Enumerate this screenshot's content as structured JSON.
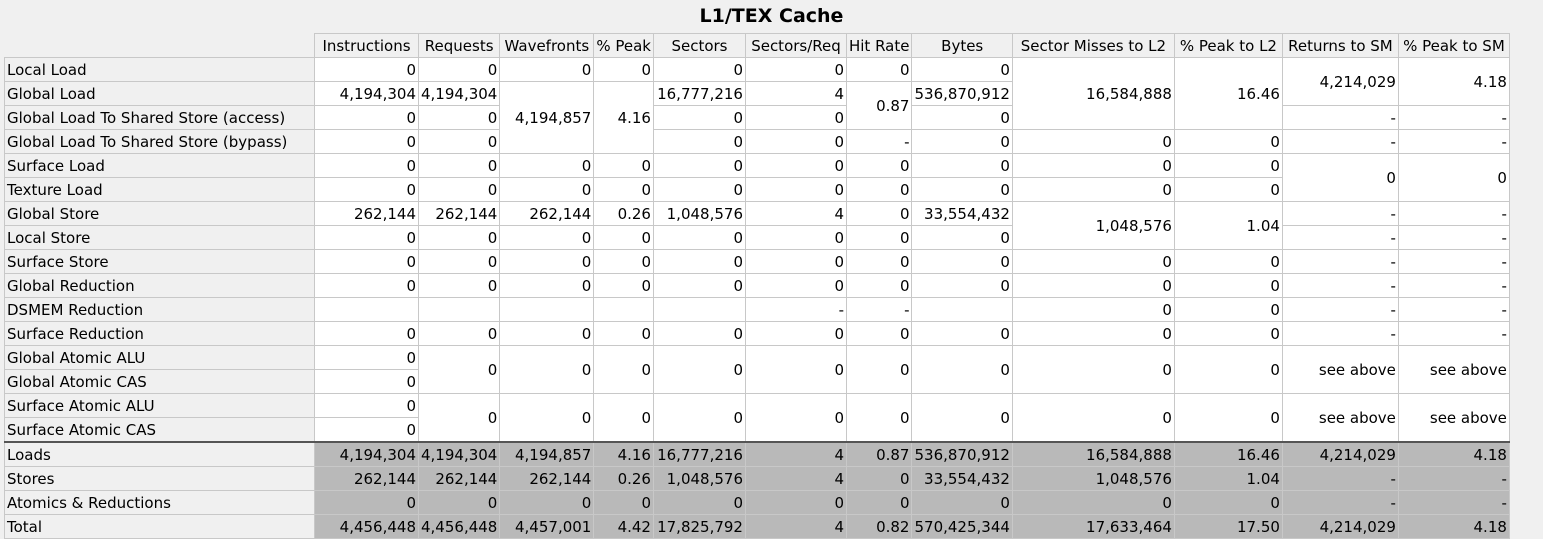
{
  "title": "L1/TEX Cache",
  "columns": [
    "Instructions",
    "Requests",
    "Wavefronts",
    "% Peak",
    "Sectors",
    "Sectors/Req",
    "Hit Rate",
    "Bytes",
    "Sector Misses to L2",
    "% Peak to L2",
    "Returns to SM",
    "% Peak to SM"
  ],
  "rows": [
    {
      "label": "Local Load",
      "cells": [
        "0",
        "0",
        "0",
        "0",
        "0",
        "0",
        "0",
        "0",
        null,
        null,
        null,
        null
      ]
    },
    {
      "label": "Global Load",
      "cells": [
        "4,194,304",
        "4,194,304",
        null,
        null,
        "16,777,216",
        "4",
        null,
        "536,870,912",
        null,
        null,
        null,
        null
      ]
    },
    {
      "label": "Global Load To Shared Store (access)",
      "cells": [
        "0",
        "0",
        null,
        null,
        "0",
        "0",
        null,
        "0",
        null,
        null,
        "-",
        "-"
      ]
    },
    {
      "label": "Global Load To Shared Store (bypass)",
      "cells": [
        "0",
        "0",
        null,
        null,
        "0",
        "0",
        "-",
        "0",
        "0",
        "0",
        "-",
        "-"
      ]
    },
    {
      "label": "Surface Load",
      "cells": [
        "0",
        "0",
        "0",
        "0",
        "0",
        "0",
        "0",
        "0",
        "0",
        "0",
        null,
        null
      ]
    },
    {
      "label": "Texture Load",
      "cells": [
        "0",
        "0",
        "0",
        "0",
        "0",
        "0",
        "0",
        "0",
        "0",
        "0",
        null,
        null
      ]
    },
    {
      "label": "Global Store",
      "cells": [
        "262,144",
        "262,144",
        "262,144",
        "0.26",
        "1,048,576",
        "4",
        "0",
        "33,554,432",
        null,
        null,
        "-",
        "-"
      ]
    },
    {
      "label": "Local Store",
      "cells": [
        "0",
        "0",
        "0",
        "0",
        "0",
        "0",
        "0",
        "0",
        null,
        null,
        "-",
        "-"
      ]
    },
    {
      "label": "Surface Store",
      "cells": [
        "0",
        "0",
        "0",
        "0",
        "0",
        "0",
        "0",
        "0",
        "0",
        "0",
        "-",
        "-"
      ]
    },
    {
      "label": "Global Reduction",
      "cells": [
        "0",
        "0",
        "0",
        "0",
        "0",
        "0",
        "0",
        "0",
        "0",
        "0",
        "-",
        "-"
      ]
    },
    {
      "label": "DSMEM Reduction",
      "cells": [
        "",
        "",
        "",
        "",
        "",
        "-",
        "-",
        "",
        "0",
        "0",
        "-",
        "-"
      ]
    },
    {
      "label": "Surface Reduction",
      "cells": [
        "0",
        "0",
        "0",
        "0",
        "0",
        "0",
        "0",
        "0",
        "0",
        "0",
        "-",
        "-"
      ]
    },
    {
      "label": "Global Atomic ALU",
      "cells": [
        "0",
        "0",
        "0",
        "0",
        "0",
        "0",
        "0",
        "0",
        "0",
        "0",
        "see above",
        "see above"
      ]
    },
    {
      "label": "Global Atomic CAS",
      "cells": [
        "0",
        null,
        null,
        null,
        null,
        null,
        null,
        null,
        null,
        null,
        null,
        null
      ]
    },
    {
      "label": "Surface Atomic ALU",
      "cells": [
        "0",
        "0",
        "0",
        "0",
        "0",
        "0",
        "0",
        "0",
        "0",
        "0",
        "see above",
        "see above"
      ]
    },
    {
      "label": "Surface Atomic CAS",
      "cells": [
        "0",
        null,
        null,
        null,
        null,
        null,
        null,
        null,
        null,
        null,
        null,
        null
      ]
    }
  ],
  "merged": {
    "wavefronts_global": "4,194,857",
    "peak_global": "4.16",
    "hitrate_global": "0.87",
    "misses_global": "16,584,888",
    "peakl2_global": "16.46",
    "returns_load": "4,214,029",
    "peaksm_load": "4.18",
    "returns_tex": "0",
    "peaksm_tex": "0",
    "misses_store": "1,048,576",
    "peakl2_store": "1.04"
  },
  "summary": [
    {
      "label": "Loads",
      "cells": [
        "4,194,304",
        "4,194,304",
        "4,194,857",
        "4.16",
        "16,777,216",
        "4",
        "0.87",
        "536,870,912",
        "16,584,888",
        "16.46",
        "4,214,029",
        "4.18"
      ]
    },
    {
      "label": "Stores",
      "cells": [
        "262,144",
        "262,144",
        "262,144",
        "0.26",
        "1,048,576",
        "4",
        "0",
        "33,554,432",
        "1,048,576",
        "1.04",
        "-",
        "-"
      ]
    },
    {
      "label": "Atomics & Reductions",
      "cells": [
        "0",
        "0",
        "0",
        "0",
        "0",
        "0",
        "0",
        "0",
        "0",
        "0",
        "-",
        "-"
      ]
    },
    {
      "label": "Total",
      "cells": [
        "4,456,448",
        "4,456,448",
        "4,457,001",
        "4.42",
        "17,825,792",
        "4",
        "0.82",
        "570,425,344",
        "17,633,464",
        "17.50",
        "4,214,029",
        "4.18"
      ]
    }
  ]
}
